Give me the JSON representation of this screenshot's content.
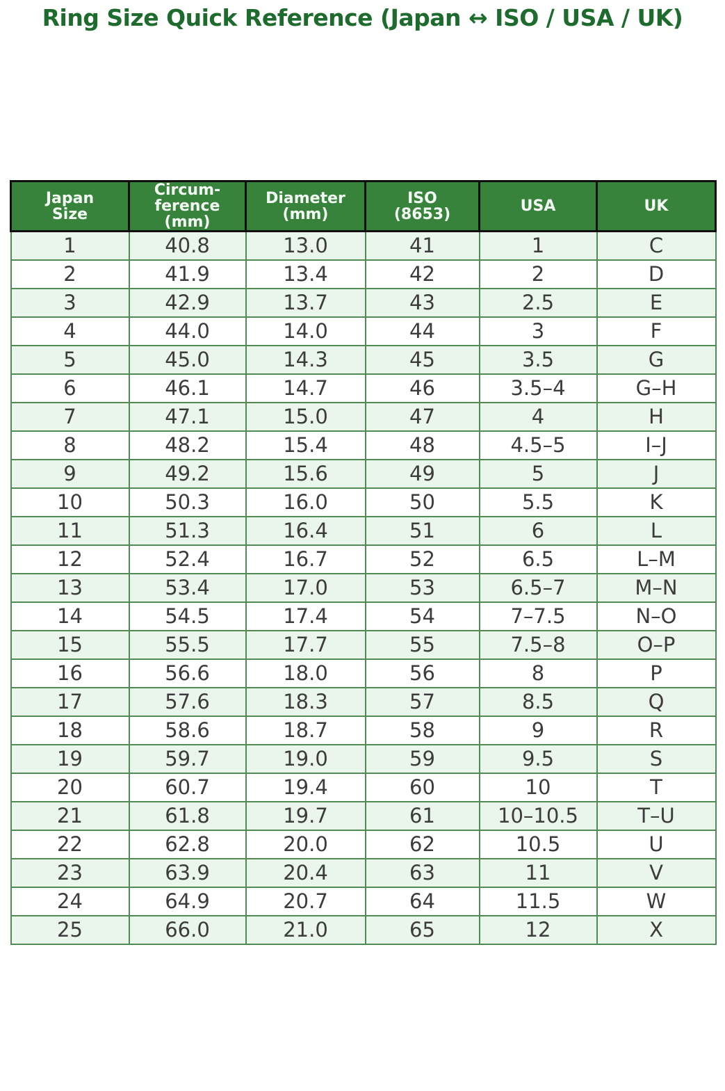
{
  "title": "Ring Size Quick Reference (Japan ↔ ISO / USA / UK)",
  "colors": {
    "title_green": "#1e6b2e",
    "header_bg": "#38833c",
    "header_text": "#f4faf4",
    "header_border": "#0f0f0f",
    "grid_green": "#4f8b53",
    "row_alt_bg": "#eaf6eb",
    "row_bg": "#ffffff",
    "body_text": "#3c3c3c"
  },
  "table": {
    "header_labels": [
      "Japan\nSize",
      "Circum-\nference\n(mm)",
      "Diameter\n(mm)",
      "ISO\n(8653)",
      "USA",
      "UK"
    ]
  },
  "chart_data": {
    "type": "table",
    "title": "Ring Size Quick Reference (Japan ↔ ISO / USA / UK)",
    "columns": [
      "Japan Size",
      "Circumference (mm)",
      "Diameter (mm)",
      "ISO (8653)",
      "USA",
      "UK"
    ],
    "rows": [
      [
        "1",
        "40.8",
        "13.0",
        "41",
        "1",
        "C"
      ],
      [
        "2",
        "41.9",
        "13.4",
        "42",
        "2",
        "D"
      ],
      [
        "3",
        "42.9",
        "13.7",
        "43",
        "2.5",
        "E"
      ],
      [
        "4",
        "44.0",
        "14.0",
        "44",
        "3",
        "F"
      ],
      [
        "5",
        "45.0",
        "14.3",
        "45",
        "3.5",
        "G"
      ],
      [
        "6",
        "46.1",
        "14.7",
        "46",
        "3.5–4",
        "G–H"
      ],
      [
        "7",
        "47.1",
        "15.0",
        "47",
        "4",
        "H"
      ],
      [
        "8",
        "48.2",
        "15.4",
        "48",
        "4.5–5",
        "I–J"
      ],
      [
        "9",
        "49.2",
        "15.6",
        "49",
        "5",
        "J"
      ],
      [
        "10",
        "50.3",
        "16.0",
        "50",
        "5.5",
        "K"
      ],
      [
        "11",
        "51.3",
        "16.4",
        "51",
        "6",
        "L"
      ],
      [
        "12",
        "52.4",
        "16.7",
        "52",
        "6.5",
        "L–M"
      ],
      [
        "13",
        "53.4",
        "17.0",
        "53",
        "6.5–7",
        "M–N"
      ],
      [
        "14",
        "54.5",
        "17.4",
        "54",
        "7–7.5",
        "N–O"
      ],
      [
        "15",
        "55.5",
        "17.7",
        "55",
        "7.5–8",
        "O–P"
      ],
      [
        "16",
        "56.6",
        "18.0",
        "56",
        "8",
        "P"
      ],
      [
        "17",
        "57.6",
        "18.3",
        "57",
        "8.5",
        "Q"
      ],
      [
        "18",
        "58.6",
        "18.7",
        "58",
        "9",
        "R"
      ],
      [
        "19",
        "59.7",
        "19.0",
        "59",
        "9.5",
        "S"
      ],
      [
        "20",
        "60.7",
        "19.4",
        "60",
        "10",
        "T"
      ],
      [
        "21",
        "61.8",
        "19.7",
        "61",
        "10–10.5",
        "T–U"
      ],
      [
        "22",
        "62.8",
        "20.0",
        "62",
        "10.5",
        "U"
      ],
      [
        "23",
        "63.9",
        "20.4",
        "63",
        "11",
        "V"
      ],
      [
        "24",
        "64.9",
        "20.7",
        "64",
        "11.5",
        "W"
      ],
      [
        "25",
        "66.0",
        "21.0",
        "65",
        "12",
        "X"
      ]
    ]
  }
}
